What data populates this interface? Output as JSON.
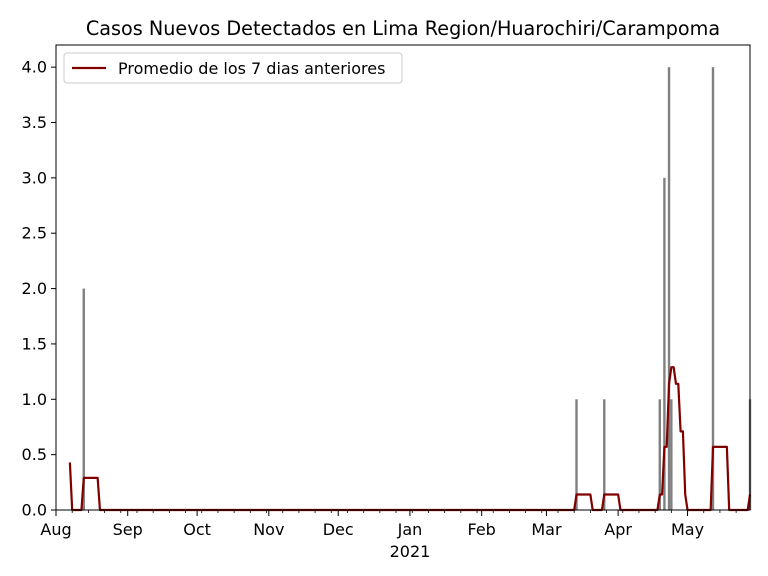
{
  "chart_data": {
    "type": "bar",
    "title": "Casos Nuevos Detectados en Lima Region/Huarochiri/Carampoma",
    "xlabel": "",
    "ylabel": "",
    "x_range": [
      "2020-08-01",
      "2021-05-28"
    ],
    "ylim": [
      0,
      4.2
    ],
    "y_ticks": [
      0.0,
      0.5,
      1.0,
      1.5,
      2.0,
      2.5,
      3.0,
      3.5,
      4.0
    ],
    "y_tick_labels": [
      "0.0",
      "0.5",
      "1.0",
      "1.5",
      "2.0",
      "2.5",
      "3.0",
      "3.5",
      "4.0"
    ],
    "x_ticks": [
      {
        "date": "2020-08-01",
        "label": "Aug"
      },
      {
        "date": "2020-09-01",
        "label": "Sep"
      },
      {
        "date": "2020-10-01",
        "label": "Oct"
      },
      {
        "date": "2020-11-01",
        "label": "Nov"
      },
      {
        "date": "2020-12-01",
        "label": "Dec"
      },
      {
        "date": "2021-01-01",
        "label": "Jan"
      },
      {
        "date": "2021-02-01",
        "label": "Feb"
      },
      {
        "date": "2021-03-01",
        "label": "Mar"
      },
      {
        "date": "2021-04-01",
        "label": "Apr"
      },
      {
        "date": "2021-05-01",
        "label": "May"
      }
    ],
    "year_label": {
      "date": "2021-01-01",
      "label": "2021"
    },
    "grid": false,
    "legend_position": "top-left",
    "bars": {
      "name": "",
      "color": "#808080",
      "points": [
        {
          "date": "2020-08-13",
          "value": 2
        },
        {
          "date": "2021-03-14",
          "value": 1
        },
        {
          "date": "2021-03-26",
          "value": 1
        },
        {
          "date": "2021-04-19",
          "value": 1
        },
        {
          "date": "2021-04-21",
          "value": 3
        },
        {
          "date": "2021-04-23",
          "value": 4
        },
        {
          "date": "2021-04-24",
          "value": 1
        },
        {
          "date": "2021-05-12",
          "value": 4
        },
        {
          "date": "2021-05-28",
          "value": 1
        }
      ]
    },
    "line": {
      "name": "Promedio de los 7 dias anteriores",
      "color": "#800000",
      "points": [
        {
          "date": "2020-08-07",
          "value": 0.43
        },
        {
          "date": "2020-08-08",
          "value": 0.0
        },
        {
          "date": "2020-08-12",
          "value": 0.0
        },
        {
          "date": "2020-08-13",
          "value": 0.29
        },
        {
          "date": "2020-08-19",
          "value": 0.29
        },
        {
          "date": "2020-08-20",
          "value": 0.0
        },
        {
          "date": "2021-03-13",
          "value": 0.0
        },
        {
          "date": "2021-03-14",
          "value": 0.14
        },
        {
          "date": "2021-03-20",
          "value": 0.14
        },
        {
          "date": "2021-03-21",
          "value": 0.0
        },
        {
          "date": "2021-03-25",
          "value": 0.0
        },
        {
          "date": "2021-03-26",
          "value": 0.14
        },
        {
          "date": "2021-04-01",
          "value": 0.14
        },
        {
          "date": "2021-04-02",
          "value": 0.0
        },
        {
          "date": "2021-04-18",
          "value": 0.0
        },
        {
          "date": "2021-04-19",
          "value": 0.14
        },
        {
          "date": "2021-04-20",
          "value": 0.14
        },
        {
          "date": "2021-04-21",
          "value": 0.57
        },
        {
          "date": "2021-04-22",
          "value": 0.57
        },
        {
          "date": "2021-04-23",
          "value": 1.14
        },
        {
          "date": "2021-04-24",
          "value": 1.29
        },
        {
          "date": "2021-04-25",
          "value": 1.29
        },
        {
          "date": "2021-04-26",
          "value": 1.14
        },
        {
          "date": "2021-04-27",
          "value": 1.14
        },
        {
          "date": "2021-04-28",
          "value": 0.71
        },
        {
          "date": "2021-04-29",
          "value": 0.71
        },
        {
          "date": "2021-04-30",
          "value": 0.14
        },
        {
          "date": "2021-05-01",
          "value": 0.0
        },
        {
          "date": "2021-05-11",
          "value": 0.0
        },
        {
          "date": "2021-05-12",
          "value": 0.57
        },
        {
          "date": "2021-05-18",
          "value": 0.57
        },
        {
          "date": "2021-05-19",
          "value": 0.0
        },
        {
          "date": "2021-05-27",
          "value": 0.0
        },
        {
          "date": "2021-05-28",
          "value": 0.14
        }
      ]
    }
  }
}
